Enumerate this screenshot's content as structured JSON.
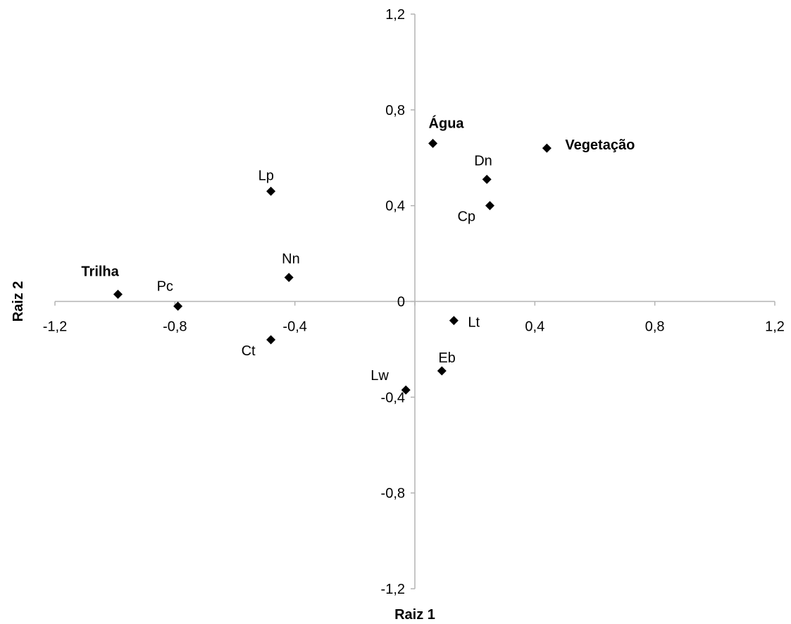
{
  "chart_data": {
    "type": "scatter",
    "xlabel": "Raiz 1",
    "ylabel": "Raiz 2",
    "xlim": [
      -1.2,
      1.2
    ],
    "ylim": [
      -1.2,
      1.2
    ],
    "x_ticks": [
      "-1,2",
      "-0,8",
      "-0,4",
      "0",
      "0,4",
      "0,8",
      "1,2"
    ],
    "y_ticks": [
      "1,2",
      "0,8",
      "0,4",
      "0",
      "-0,4",
      "-0,8",
      "-1,2"
    ],
    "grid": false,
    "legend": false,
    "points": [
      {
        "label": "Trilha",
        "x": -0.99,
        "y": 0.03,
        "bold": true
      },
      {
        "label": "Pc",
        "x": -0.79,
        "y": -0.02,
        "bold": false
      },
      {
        "label": "Ct",
        "x": -0.48,
        "y": -0.16,
        "bold": false
      },
      {
        "label": "Nn",
        "x": -0.42,
        "y": 0.1,
        "bold": false
      },
      {
        "label": "Lp",
        "x": -0.48,
        "y": 0.46,
        "bold": false
      },
      {
        "label": "Lw",
        "x": -0.03,
        "y": -0.37,
        "bold": false
      },
      {
        "label": "Eb",
        "x": 0.09,
        "y": -0.29,
        "bold": false
      },
      {
        "label": "Lt",
        "x": 0.13,
        "y": -0.08,
        "bold": false
      },
      {
        "label": "Água",
        "x": 0.06,
        "y": 0.66,
        "bold": true
      },
      {
        "label": "Dn",
        "x": 0.24,
        "y": 0.51,
        "bold": false
      },
      {
        "label": "Cp",
        "x": 0.25,
        "y": 0.4,
        "bold": false
      },
      {
        "label": "Vegetação",
        "x": 0.44,
        "y": 0.64,
        "bold": true
      }
    ]
  }
}
